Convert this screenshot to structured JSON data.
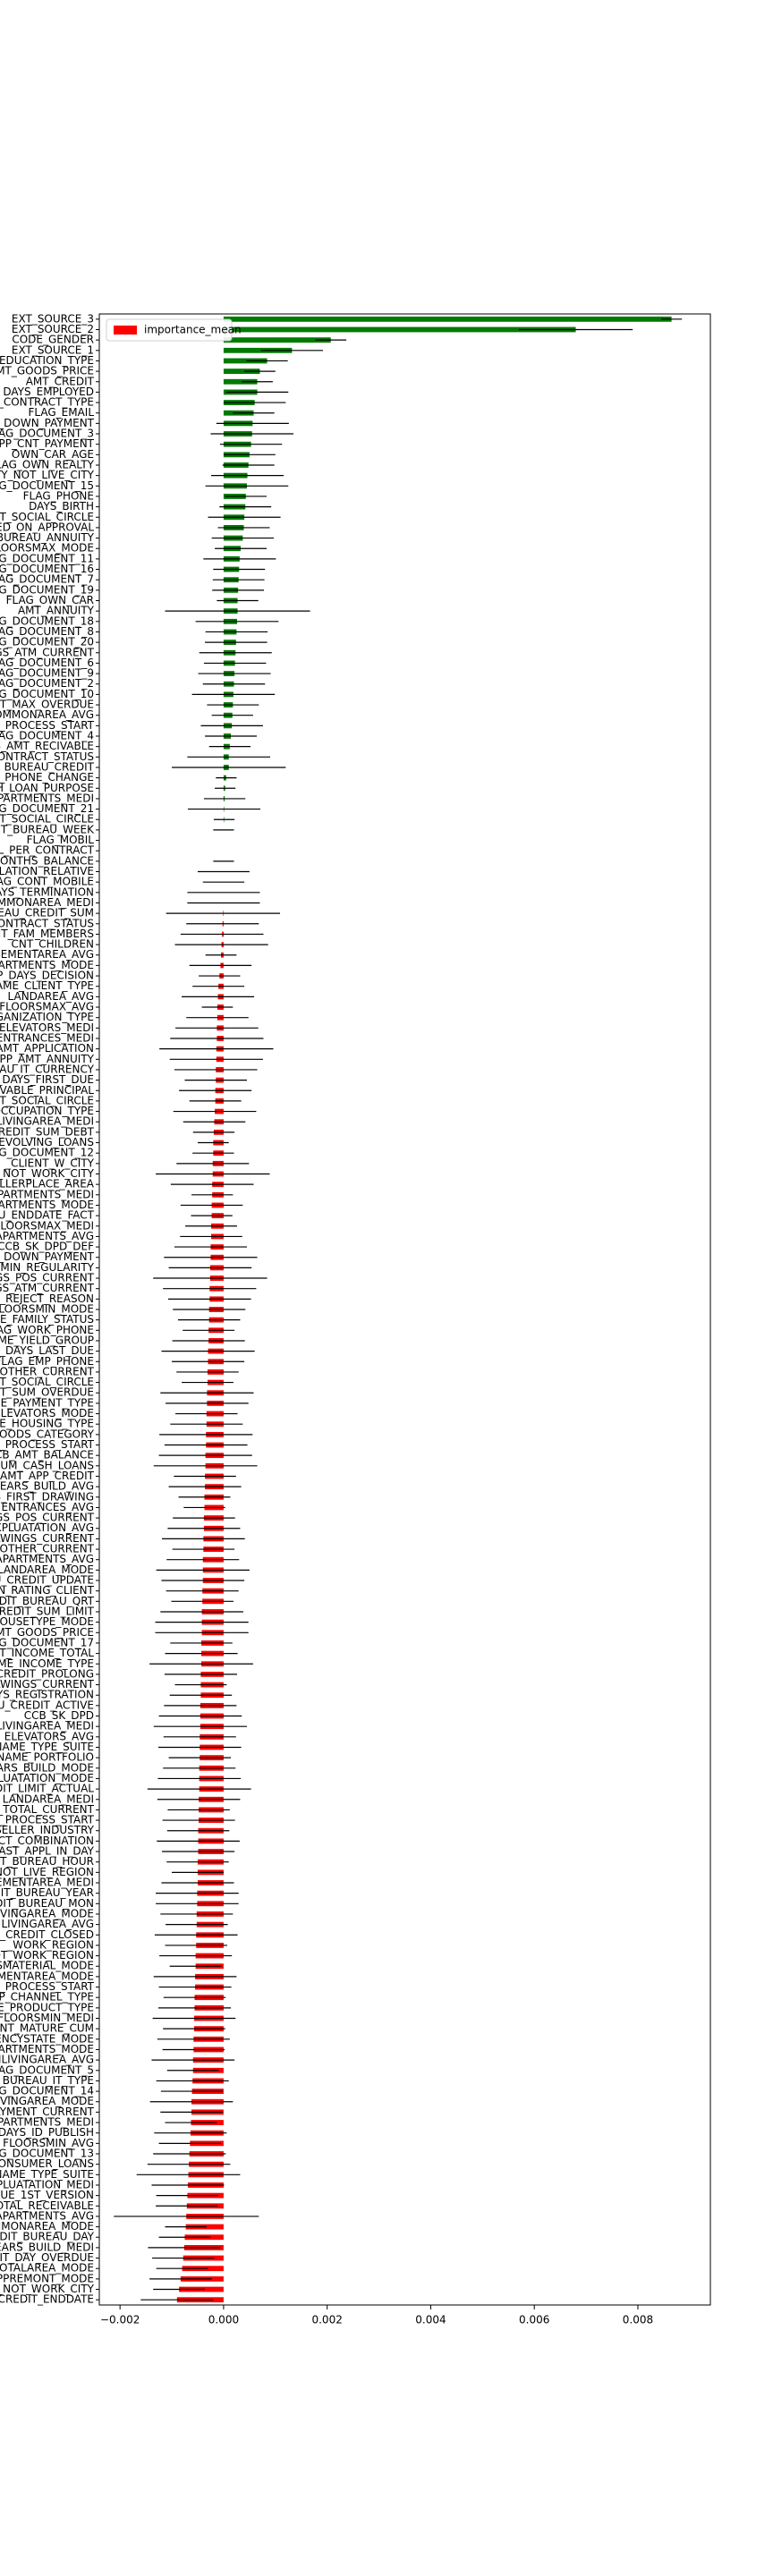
{
  "chart_data": {
    "type": "barh",
    "categories": [
      "EXT_SOURCE_3",
      "EXT_SOURCE_2",
      "CODE_GENDER",
      "EXT_SOURCE_1",
      "E_EDUCATION_TYPE",
      "AMT_GOODS_PRICE",
      "AMT_CREDIT",
      "DAYS_EMPLOYED",
      "ME_CONTRACT_TYPE",
      "FLAG_EMAIL",
      "MT_DOWN_PAYMENT",
      "FLAG_DOCUMENT_3",
      "APP_CNT_PAYMENT",
      "OWN_CAR_AGE",
      "FLAG_OWN_REALTY",
      "CITY_NOT_LIVE_CITY",
      "FLAG_DOCUMENT_15",
      "FLAG_PHONE",
      "DAYS_BIRTH",
      "CNT_SOCIAL_CIRCLE",
      "RED_ON_APPROVAL",
      "BUREAU_ANNUITY",
      "FLOORSMAX_MODE",
      "FLAG_DOCUMENT_11",
      "FLAG_DOCUMENT_16",
      "FLAG_DOCUMENT_7",
      "FLAG_DOCUMENT_19",
      "FLAG_OWN_CAR",
      "AMT_ANNUITY",
      "FLAG_DOCUMENT_18",
      "FLAG_DOCUMENT_8",
      "FLAG_DOCUMENT_20",
      "NGS_ATM_CURRENT",
      "FLAG_DOCUMENT_6",
      "FLAG_DOCUMENT_9",
      "FLAG_DOCUMENT_2",
      "FLAG_DOCUMENT_10",
      "REDIT_MAX_OVERDUE",
      "COMMONAREA_AVG",
      "PP_PROCESS_START",
      "FLAG_DOCUMENT_4",
      "CCB_AMT_RECIVABLE",
      "CONTRACT_STATUS",
      "BUREAU_CREDIT",
      "ST_PHONE_CHANGE",
      "ASH_LOAN_PURPOSE",
      "PARTMENTS_MEDI",
      "FLAG_DOCUMENT_21",
      "CNT_SOCIAL_CIRCLE",
      "EDIT_BUREAU_WEEK",
      "FLAG_MOBIL",
      "PPL_PER_CONTRACT",
      "MONTHS_BALANCE",
      "PULATION_RELATIVE",
      "FLAG_CONT_MOBILE",
      "DAYS_TERMINATION",
      "COMMONAREA_MEDI",
      "UREAU_CREDIT_SUM",
      "CONTRACT_STATUS",
      "CNT_FAM_MEMBERS",
      "CNT_CHILDREN",
      "ASEMENTAREA_AVG",
      "APARTMENTS_MODE",
      "APP_DAYS_DECISION",
      "NAME_CLIENT_TYPE",
      "LANDAREA_AVG",
      "FLOORSMAX_AVG",
      "ORGANIZATION_TYPE",
      "ELEVATORS_MEDI",
      "ENTRANCES_MEDI",
      "PP_AMT_APPLICATION",
      "APP_AMT_ANNUITY",
      "UREAU_IT_CURRENCY",
      "PP_DAYS_FIRST_DUE",
      "CEIVABLE_PRINCIPAL",
      "CNT_SOCIAL_CIRCLE",
      "OCCUPATION_TYPE",
      "LIVINGAREA_MEDI",
      "CREDIT_SUM_DEBT",
      "REVOLVING_LOANS",
      "FLAG_DOCUMENT_12",
      "_CLIENT_W_CITY",
      "ITY_NOT_WORK_CITY",
      "SELLERPLACE_AREA",
      "APARTMENTS_MEDI",
      "APARTMENTS_MODE",
      "AU_ENDDATE_FACT",
      "FLOORSMAX_MEDI",
      "GAPARTMENTS_AVG",
      "CCB_SK_DPD_DEF",
      "TE_DOWN_PAYMENT",
      "T_MIN_REGULARITY",
      "NGS_POS_CURRENT",
      "NGS_ATM_CURRENT",
      "DE_REJECT_REASON",
      "FLOORSMIN_MODE",
      "ME_FAMILY_STATUS",
      "FLAG_WORK_PHONE",
      "NAME_YIELD_GROUP",
      "APP_DAYS_LAST_DUE",
      "FLAG_EMP_PHONE",
      "S_OTHER_CURRENT",
      "CNT_SOCIAL_CIRCLE",
      "EDIT_SUM_OVERDUE",
      "ME_PAYMENT_TYPE",
      "ELEVATORS_MODE",
      "AME_HOUSING_TYPE",
      "GOODS_CATEGORY",
      "PP_PROCESS_START",
      "CCB_AMT_BALANCE",
      "NUM_CASH_LOANS",
      "P_AMT_APP_CREDIT",
      "YEARS_BUILD_AVG",
      "YS_FIRST_DRAWING",
      "ENTRANCES_AVG",
      "NGS_POS_CURRENT",
      "EXPLUATATION_AVG",
      "DRAWINGS_CURRENT",
      "S_OTHER_CURRENT",
      "GAPARTMENTS_AVG",
      "LANDAREA_MODE",
      "AU_CREDIT_UPDATE",
      "ION_RATING_CLIENT",
      "CREDIT_BUREAU_QRT",
      "O_CREDIT_SUM_LIMIT",
      "HOUSETYPE_MODE",
      "AMT_GOODS_PRICE",
      "FLAG_DOCUMENT_17",
      "AMT_INCOME_TOTAL",
      "NAME_INCOME_TYPE",
      "U_CREDIT_PROLONG",
      "DRAWINGS_CURRENT",
      "DAYS_REGISTRATION",
      "EAU_CREDIT_ACTIVE",
      "CCB_SK_DPD",
      "ONLIVINGAREA_MEDI",
      "ELEVATORS_AVG",
      "NAME_TYPE_SUITE",
      "PP_NAME_PORTFOLIO",
      "YEARS_BUILD_MODE",
      "EXPLUATATION_MODE",
      "REDIT_LIMIT_ACTUAL",
      "LANDAREA_MEDI",
      "NT_TOTAL_CURRENT",
      "PP_PROCESS_START",
      "_SELLER_INDUSTRY",
      "DUCT_COMBINATION",
      "LAST_APPL_IN_DAY",
      "EDIT_BUREAU_HOUR",
      "_NOT_LIVE_REGION",
      "ASEMENTAREA_MEDI",
      "EDIT_BUREAU_YEAR",
      "EDIT_BUREAU_MON",
      "ONLIVINGAREA_MODE",
      "LIVINGAREA_AVG",
      "AU_CREDIT_CLOSED",
      "_WORK_REGION",
      "NOT_WORK_REGION",
      "LSMATERIAL_MODE",
      "SEMENTAREA_MODE",
      "PP_PROCESS_START",
      "APP_CHANNEL_TYPE",
      "NAME_PRODUCT_TYPE",
      "FLOORSMIN_MEDI",
      "MENT_MATURE_CUM",
      "GENCYSTATE_MODE",
      "APARTMENTS_MODE",
      "ONLIVINGAREA_AVG",
      "FLAG_DOCUMENT_5",
      "BUREAU_IT_TYPE",
      "FLAG_DOCUMENT_14",
      "LIVINGAREA_MODE",
      "PAYMENT_CURRENT",
      "GAPARTMENTS_MEDI",
      "DAYS_ID_PUBLISH",
      "FLOORSMIN_AVG",
      "FLAG_DOCUMENT_13",
      "CONSUMER_LOANS",
      "F_NAME_TYPE_SUITE",
      "EXPLUATATION_MEDI",
      "_DUE_1ST_VERSION",
      "TOTAL_RECEIVABLE",
      "APARTMENTS_AVG",
      "COMMONAREA_MODE",
      "CREDIT_BUREAU_DAY",
      "YEARS_BUILD_MEDI",
      "U_IT_DAY_OVERDUE",
      "TOTALAREA_MODE",
      "OKAPPREMONT_MODE",
      "ITY_NOT_WORK_CITY",
      "AU_CREDIT_ENDDATE"
    ],
    "series": [
      {
        "name": "importance_mean",
        "color": "#ff0000",
        "positive_color": "#007a00",
        "values": [
          0.00865,
          0.0068,
          0.00207,
          0.00132,
          0.00084,
          0.0007,
          0.00065,
          0.00065,
          0.0006,
          0.00058,
          0.00056,
          0.00055,
          0.00053,
          0.0005,
          0.00048,
          0.00046,
          0.00045,
          0.00043,
          0.00042,
          0.0004,
          0.00039,
          0.00037,
          0.00033,
          0.00031,
          0.0003,
          0.00029,
          0.00028,
          0.00027,
          0.00027,
          0.00026,
          0.00025,
          0.00024,
          0.00023,
          0.00022,
          0.00021,
          0.0002,
          0.00019,
          0.00018,
          0.00017,
          0.00016,
          0.00014,
          0.00012,
          0.0001,
          0.0001,
          5e-05,
          3e-05,
          2e-05,
          1e-05,
          1e-05,
          0,
          0,
          0,
          0,
          0,
          0,
          0,
          0,
          -1e-05,
          -2e-05,
          -3e-05,
          -4e-05,
          -5e-05,
          -6e-05,
          -8e-05,
          -0.0001,
          -0.00011,
          -0.00012,
          -0.00012,
          -0.00013,
          -0.00013,
          -0.00014,
          -0.00014,
          -0.00015,
          -0.00015,
          -0.00016,
          -0.00016,
          -0.00017,
          -0.00018,
          -0.00019,
          -0.0002,
          -0.0002,
          -0.00021,
          -0.00021,
          -0.00022,
          -0.00022,
          -0.00023,
          -0.00023,
          -0.00024,
          -0.00024,
          -0.00025,
          -0.00025,
          -0.00026,
          -0.00026,
          -0.00027,
          -0.00027,
          -0.00028,
          -0.00028,
          -0.00029,
          -0.00029,
          -0.0003,
          -0.0003,
          -0.00031,
          -0.00031,
          -0.00032,
          -0.00032,
          -0.00033,
          -0.00033,
          -0.00034,
          -0.00034,
          -0.00035,
          -0.00035,
          -0.00036,
          -0.00036,
          -0.00037,
          -0.00037,
          -0.00038,
          -0.00038,
          -0.00039,
          -0.00039,
          -0.0004,
          -0.0004,
          -0.0004,
          -0.00041,
          -0.00041,
          -0.00042,
          -0.00042,
          -0.00042,
          -0.00043,
          -0.00043,
          -0.00043,
          -0.00044,
          -0.00044,
          -0.00044,
          -0.00045,
          -0.00045,
          -0.00045,
          -0.00046,
          -0.00046,
          -0.00046,
          -0.00047,
          -0.00047,
          -0.00047,
          -0.00048,
          -0.00048,
          -0.00048,
          -0.00049,
          -0.00049,
          -0.00049,
          -0.0005,
          -0.0005,
          -0.0005,
          -0.00051,
          -0.00051,
          -0.00052,
          -0.00052,
          -0.00053,
          -0.00053,
          -0.00054,
          -0.00054,
          -0.00055,
          -0.00055,
          -0.00056,
          -0.00056,
          -0.00057,
          -0.00057,
          -0.00058,
          -0.00058,
          -0.00059,
          -0.00059,
          -0.0006,
          -0.00061,
          -0.00062,
          -0.00062,
          -0.00063,
          -0.00064,
          -0.00065,
          -0.00066,
          -0.00067,
          -0.00068,
          -0.00069,
          -0.0007,
          -0.00071,
          -0.00072,
          -0.00073,
          -0.00075,
          -0.00076,
          -0.00078,
          -0.0008,
          -0.00083,
          -0.00086,
          -0.0009
        ],
        "errors": [
          0.0002,
          0.0011,
          0.0003,
          0.0006,
          0.0004,
          0.0003,
          0.0003,
          0.0006,
          0.0006,
          0.0004,
          0.0007,
          0.0008,
          0.0006,
          0.0005,
          0.0005,
          0.0007,
          0.0008,
          0.0004,
          0.0005,
          0.0007,
          0.0005,
          0.0006,
          0.0005,
          0.0007,
          0.0005,
          0.0005,
          0.0005,
          0.0004,
          0.0014,
          0.0008,
          0.0006,
          0.0006,
          0.0007,
          0.0006,
          0.0007,
          0.0006,
          0.0008,
          0.0005,
          0.0004,
          0.0006,
          0.0005,
          0.0004,
          0.0008,
          0.0011,
          0.0002,
          0.0002,
          0.0004,
          0.0007,
          0.0002,
          0.0002,
          0,
          0,
          0.0002,
          0.0005,
          0.0004,
          0.0007,
          0.0007,
          0.0011,
          0.0007,
          0.0008,
          0.0009,
          0.0003,
          0.0006,
          0.0004,
          0.0005,
          0.0007,
          0.0003,
          0.0006,
          0.0008,
          0.0009,
          0.0011,
          0.0009,
          0.0008,
          0.0006,
          0.0007,
          0.0005,
          0.0008,
          0.0006,
          0.0004,
          0.0003,
          0.0004,
          0.0007,
          0.0011,
          0.0008,
          0.0004,
          0.0006,
          0.0004,
          0.0005,
          0.0006,
          0.0007,
          0.0009,
          0.0008,
          0.0011,
          0.0009,
          0.0008,
          0.0007,
          0.0006,
          0.0005,
          0.0007,
          0.0009,
          0.0007,
          0.0006,
          0.0005,
          0.0009,
          0.0008,
          0.0006,
          0.0007,
          0.0009,
          0.0008,
          0.0009,
          0.001,
          0.0006,
          0.0007,
          0.0005,
          0.0004,
          0.0006,
          0.0007,
          0.0008,
          0.0006,
          0.0007,
          0.0009,
          0.0008,
          0.0007,
          0.0006,
          0.0008,
          0.0009,
          0.0009,
          0.0006,
          0.0007,
          0.001,
          0.0007,
          0.0005,
          0.0006,
          0.0007,
          0.0008,
          0.0009,
          0.0007,
          0.0008,
          0.0006,
          0.0007,
          0.0008,
          0.001,
          0.0008,
          0.0006,
          0.0007,
          0.0006,
          0.0008,
          0.0007,
          0.0006,
          0.0005,
          0.0007,
          0.0008,
          0.0008,
          0.0007,
          0.0006,
          0.0008,
          0.0006,
          0.0007,
          0.0005,
          0.0008,
          0.0007,
          0.0006,
          0.0007,
          0.0008,
          0.0006,
          0.0007,
          0.0006,
          0.0008,
          0.0005,
          0.0007,
          0.0006,
          0.0008,
          0.0006,
          0.0005,
          0.0007,
          0.0006,
          0.0007,
          0.0008,
          0.001,
          0.0007,
          0.0006,
          0.0006,
          0.0014,
          0.0004,
          0.0005,
          0.0007,
          0.0006,
          0.0005,
          0.0006,
          0.0005,
          0.0007
        ]
      }
    ],
    "xlim": [
      -0.0024,
      0.0094
    ],
    "xticks": [
      {
        "value": -0.002,
        "label": "−0.002"
      },
      {
        "value": 0,
        "label": "0.000"
      },
      0.002,
      0.004,
      0.006,
      0.008
    ],
    "legend": "upper left"
  }
}
